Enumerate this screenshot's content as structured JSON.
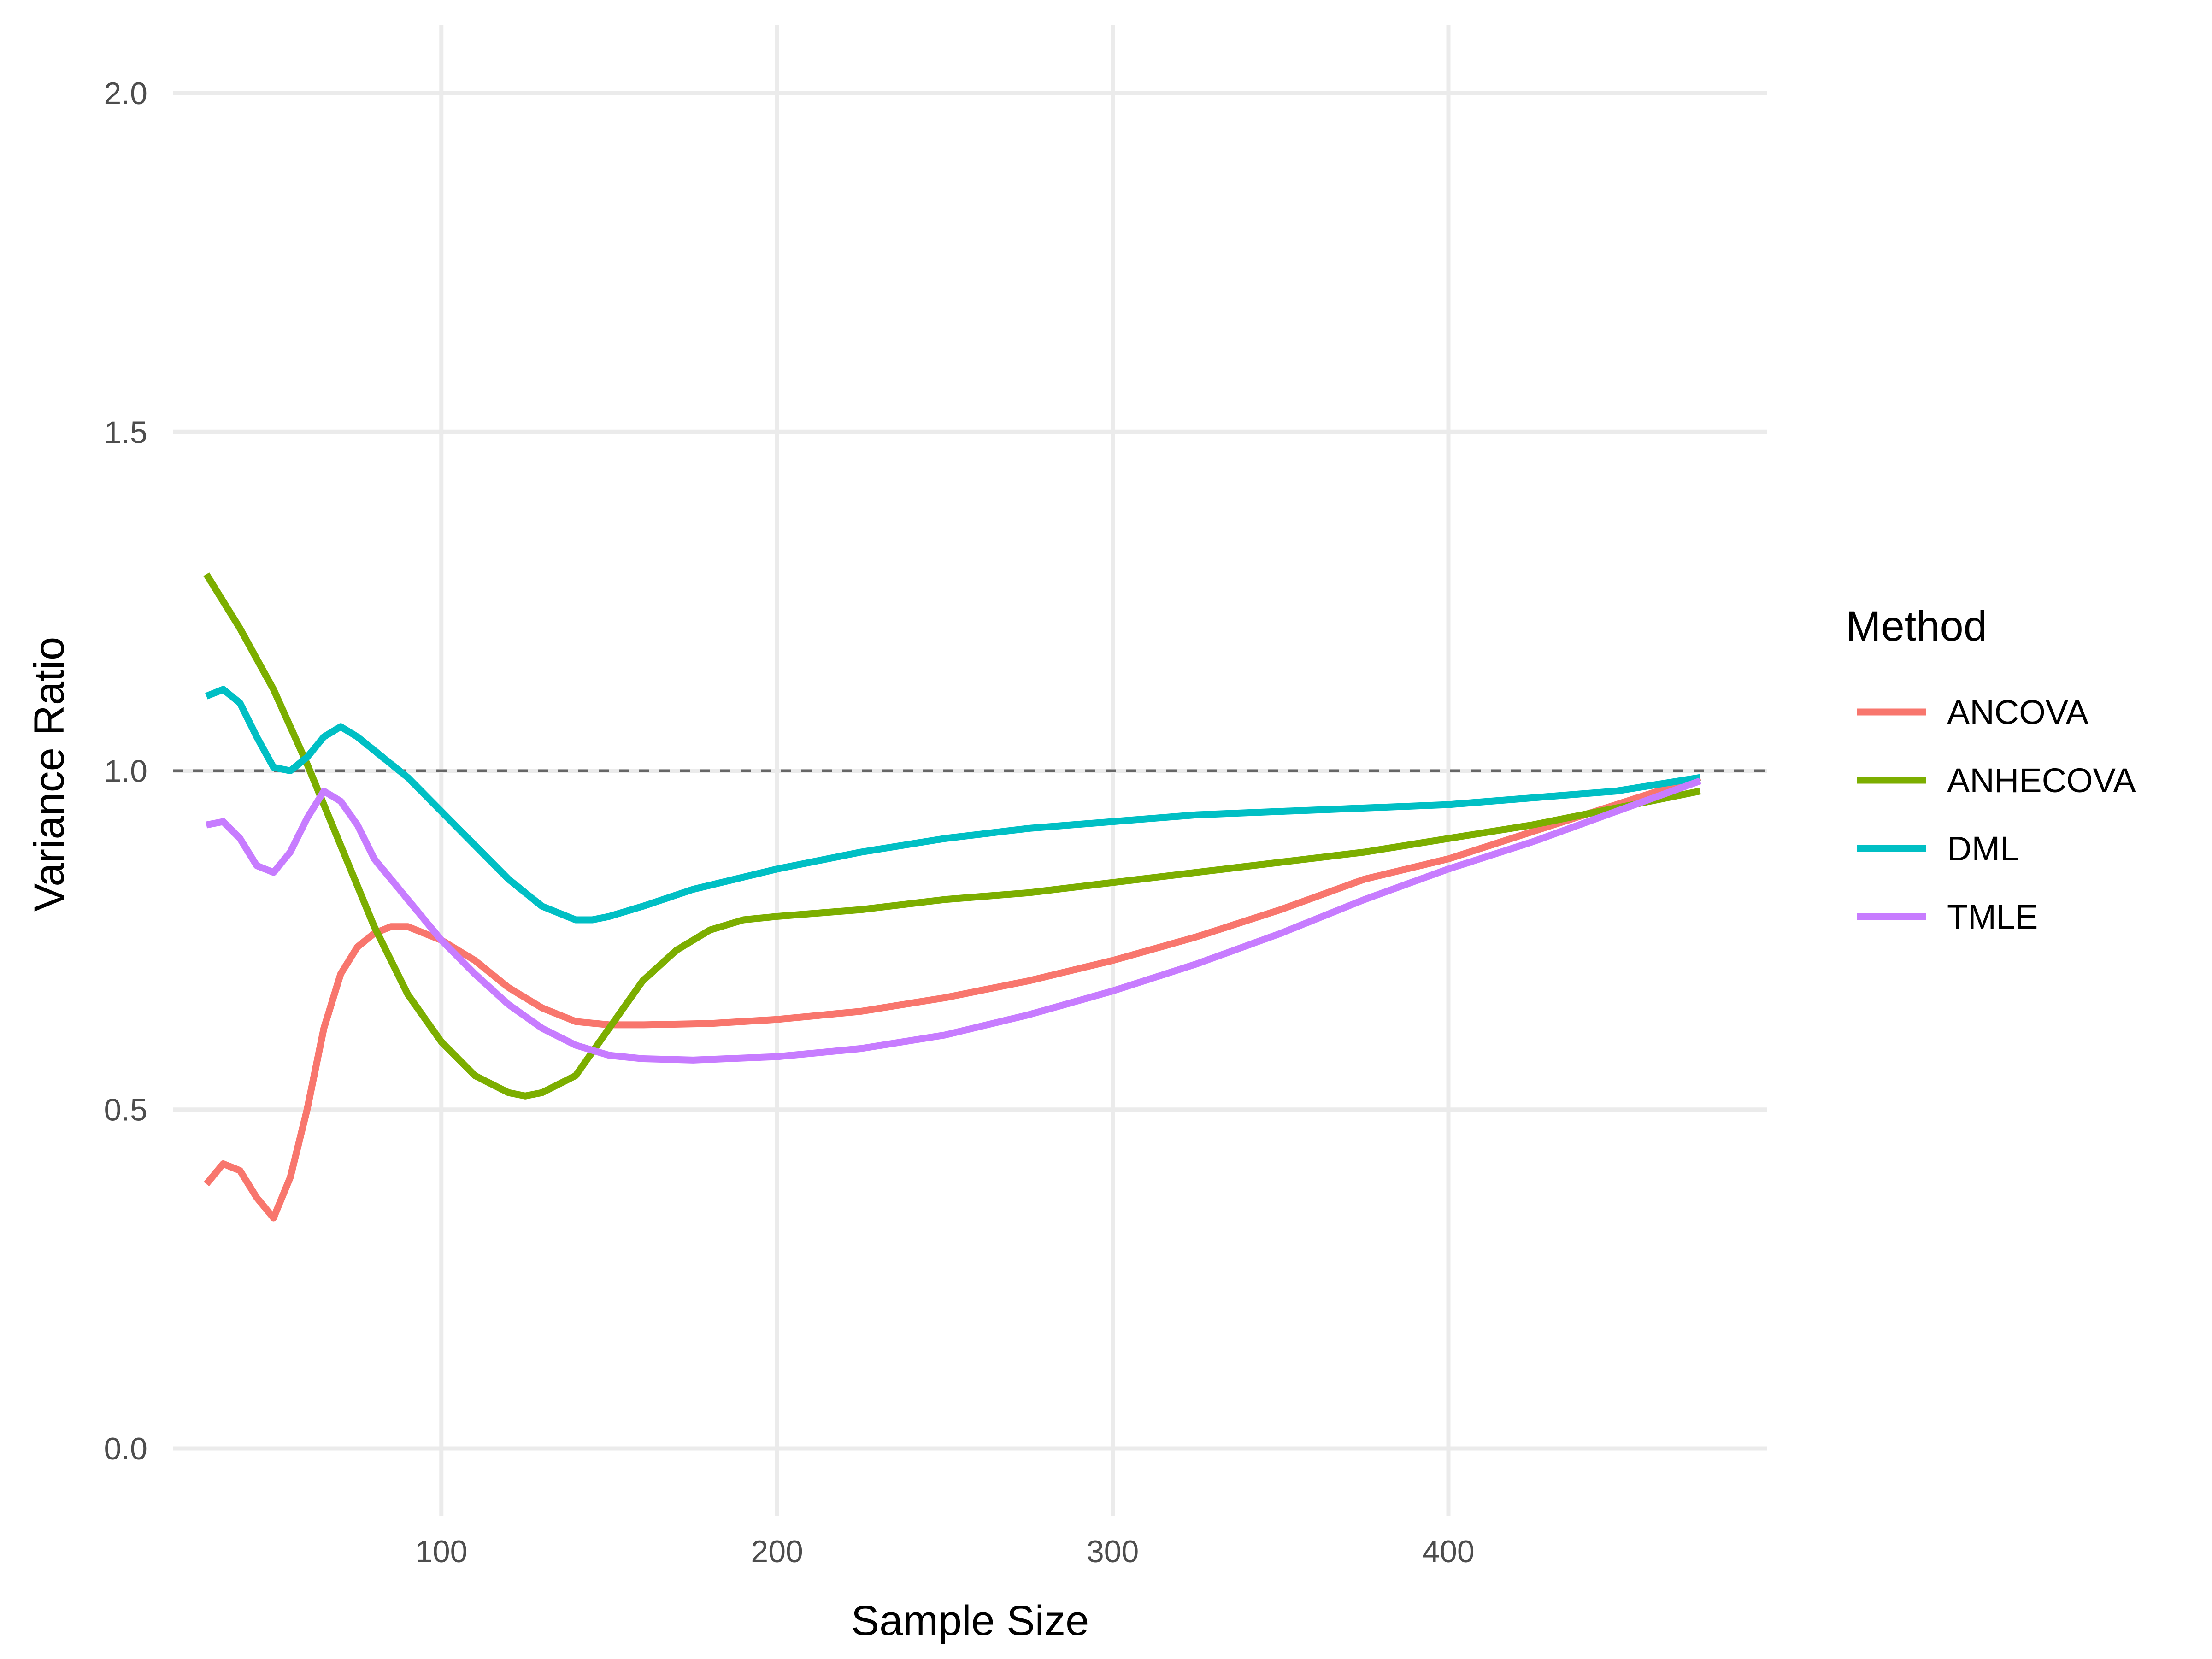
{
  "chart_data": {
    "type": "line",
    "title": "",
    "xlabel": "Sample Size",
    "ylabel": "Variance Ratio",
    "xlim": [
      20,
      495
    ],
    "ylim": [
      -0.1,
      2.1
    ],
    "x_ticks": [
      100,
      200,
      300,
      400
    ],
    "y_ticks": [
      0.0,
      0.5,
      1.0,
      1.5,
      2.0
    ],
    "x_tick_labels": [
      "100",
      "200",
      "300",
      "400"
    ],
    "y_tick_labels": [
      "0.0",
      "0.5",
      "1.0",
      "1.5",
      "2.0"
    ],
    "grid": true,
    "reference_line": {
      "y": 1.0,
      "style": "dashed",
      "color": "#666666"
    },
    "legend": {
      "title": "Method",
      "position": "right"
    },
    "series": [
      {
        "name": "ANCOVA",
        "color": "#F8766D",
        "points": [
          [
            30,
            0.39
          ],
          [
            35,
            0.42
          ],
          [
            40,
            0.41
          ],
          [
            45,
            0.37
          ],
          [
            50,
            0.34
          ],
          [
            55,
            0.4
          ],
          [
            60,
            0.5
          ],
          [
            65,
            0.62
          ],
          [
            70,
            0.7
          ],
          [
            75,
            0.74
          ],
          [
            80,
            0.76
          ],
          [
            85,
            0.77
          ],
          [
            90,
            0.77
          ],
          [
            95,
            0.76
          ],
          [
            100,
            0.75
          ],
          [
            110,
            0.72
          ],
          [
            120,
            0.68
          ],
          [
            130,
            0.65
          ],
          [
            140,
            0.63
          ],
          [
            150,
            0.625
          ],
          [
            160,
            0.625
          ],
          [
            180,
            0.627
          ],
          [
            200,
            0.633
          ],
          [
            225,
            0.645
          ],
          [
            250,
            0.665
          ],
          [
            275,
            0.69
          ],
          [
            300,
            0.72
          ],
          [
            325,
            0.755
          ],
          [
            350,
            0.795
          ],
          [
            375,
            0.84
          ],
          [
            400,
            0.87
          ],
          [
            425,
            0.91
          ],
          [
            450,
            0.95
          ],
          [
            475,
            0.99
          ]
        ]
      },
      {
        "name": "ANHECOVA",
        "color": "#7CAE00",
        "points": [
          [
            30,
            1.29
          ],
          [
            40,
            1.21
          ],
          [
            50,
            1.12
          ],
          [
            60,
            1.01
          ],
          [
            70,
            0.89
          ],
          [
            80,
            0.77
          ],
          [
            90,
            0.67
          ],
          [
            100,
            0.6
          ],
          [
            110,
            0.55
          ],
          [
            120,
            0.525
          ],
          [
            125,
            0.52
          ],
          [
            130,
            0.525
          ],
          [
            140,
            0.55
          ],
          [
            150,
            0.62
          ],
          [
            160,
            0.69
          ],
          [
            170,
            0.735
          ],
          [
            180,
            0.765
          ],
          [
            190,
            0.78
          ],
          [
            200,
            0.785
          ],
          [
            225,
            0.795
          ],
          [
            250,
            0.81
          ],
          [
            275,
            0.82
          ],
          [
            300,
            0.835
          ],
          [
            325,
            0.85
          ],
          [
            350,
            0.865
          ],
          [
            375,
            0.88
          ],
          [
            400,
            0.9
          ],
          [
            425,
            0.92
          ],
          [
            450,
            0.945
          ],
          [
            475,
            0.97
          ]
        ]
      },
      {
        "name": "DML",
        "color": "#00BFC4",
        "points": [
          [
            30,
            1.11
          ],
          [
            35,
            1.12
          ],
          [
            40,
            1.1
          ],
          [
            45,
            1.05
          ],
          [
            50,
            1.005
          ],
          [
            55,
            1.0
          ],
          [
            60,
            1.02
          ],
          [
            65,
            1.05
          ],
          [
            70,
            1.065
          ],
          [
            75,
            1.05
          ],
          [
            80,
            1.03
          ],
          [
            90,
            0.99
          ],
          [
            100,
            0.94
          ],
          [
            110,
            0.89
          ],
          [
            120,
            0.84
          ],
          [
            130,
            0.8
          ],
          [
            140,
            0.78
          ],
          [
            145,
            0.78
          ],
          [
            150,
            0.785
          ],
          [
            160,
            0.8
          ],
          [
            175,
            0.825
          ],
          [
            200,
            0.855
          ],
          [
            225,
            0.88
          ],
          [
            250,
            0.9
          ],
          [
            275,
            0.915
          ],
          [
            300,
            0.925
          ],
          [
            325,
            0.935
          ],
          [
            350,
            0.94
          ],
          [
            375,
            0.945
          ],
          [
            400,
            0.95
          ],
          [
            425,
            0.96
          ],
          [
            450,
            0.97
          ],
          [
            475,
            0.99
          ]
        ]
      },
      {
        "name": "TMLE",
        "color": "#C77CFF",
        "points": [
          [
            30,
            0.92
          ],
          [
            35,
            0.925
          ],
          [
            40,
            0.9
          ],
          [
            45,
            0.86
          ],
          [
            50,
            0.85
          ],
          [
            55,
            0.88
          ],
          [
            60,
            0.93
          ],
          [
            65,
            0.97
          ],
          [
            70,
            0.955
          ],
          [
            75,
            0.92
          ],
          [
            80,
            0.87
          ],
          [
            90,
            0.81
          ],
          [
            100,
            0.75
          ],
          [
            110,
            0.7
          ],
          [
            120,
            0.655
          ],
          [
            130,
            0.62
          ],
          [
            140,
            0.595
          ],
          [
            150,
            0.58
          ],
          [
            160,
            0.575
          ],
          [
            175,
            0.573
          ],
          [
            200,
            0.578
          ],
          [
            225,
            0.59
          ],
          [
            250,
            0.61
          ],
          [
            275,
            0.64
          ],
          [
            300,
            0.675
          ],
          [
            325,
            0.715
          ],
          [
            350,
            0.76
          ],
          [
            375,
            0.81
          ],
          [
            400,
            0.855
          ],
          [
            425,
            0.895
          ],
          [
            450,
            0.94
          ],
          [
            475,
            0.985
          ]
        ]
      }
    ]
  }
}
